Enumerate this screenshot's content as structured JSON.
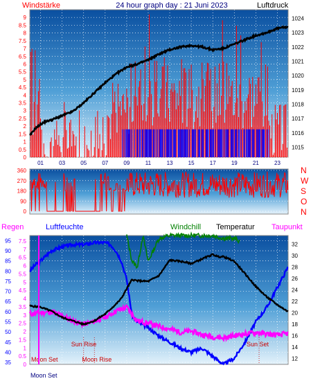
{
  "chart_data": [
    {
      "type": "line",
      "title": "24 hour graph day : 21 Juni 2023",
      "left_label": "Windstärke",
      "right_label": "Luftdruck",
      "y_left_ticks": [
        "9",
        "8.5",
        "8",
        "7.5",
        "7",
        "6.5",
        "6",
        "5.5",
        "5",
        "4.5",
        "4",
        "3.5",
        "3",
        "2.5",
        "2",
        "1.5",
        "1",
        "0.5",
        "0"
      ],
      "y_right_ticks": [
        "1024",
        "1023",
        "1022",
        "1021",
        "1020",
        "1019",
        "1018",
        "1017",
        "1016",
        "1015"
      ],
      "x_ticks": [
        "01",
        "03",
        "05",
        "07",
        "09",
        "11",
        "13",
        "15",
        "17",
        "19",
        "21",
        "23"
      ],
      "ylim_left": [
        0,
        9.5
      ],
      "ylim_right": [
        1014.3,
        1024.6
      ],
      "pressure": {
        "color": "#000000",
        "x": [
          0.0,
          0.5,
          1.0,
          1.5,
          2.0,
          3.0,
          4.0,
          5.0,
          6.0,
          7.0,
          8.0,
          9.0,
          10.0,
          11.0,
          12.0,
          13.0,
          14.0,
          15.0,
          16.0,
          17.0,
          18.0,
          19.0,
          20.0,
          21.0,
          22.0,
          23.0,
          24.0
        ],
        "values": [
          1015.8,
          1016.3,
          1016.6,
          1016.8,
          1016.9,
          1017.2,
          1017.5,
          1018.1,
          1018.8,
          1019.5,
          1020.1,
          1020.6,
          1020.8,
          1021.1,
          1021.5,
          1021.8,
          1022.0,
          1022.1,
          1022.0,
          1021.8,
          1021.9,
          1022.2,
          1022.5,
          1022.8,
          1023.0,
          1023.3,
          1023.4
        ]
      },
      "wind_gust_color": "#ff0000",
      "wind_avg_color": "#0000ff"
    },
    {
      "type": "line",
      "title": "",
      "y_left_ticks": [
        "360",
        "270",
        "180",
        "90",
        "0"
      ],
      "y_right_letters": [
        "N",
        "W",
        "S",
        "O",
        "N"
      ],
      "ylim": [
        0,
        360
      ],
      "color": "#ff0000",
      "x_ranges_blank": [
        [
          1.6,
          3.0
        ],
        [
          4.2,
          6.0
        ]
      ]
    },
    {
      "type": "line",
      "title": "",
      "legend": [
        "Regen",
        "Luftfeuchte",
        "Windchill",
        "Temperatur",
        "Taupunkt"
      ],
      "legend_colors": [
        "#ff00ff",
        "#0000ff",
        "#008000",
        "#000000",
        "#ff00ff"
      ],
      "y_rain_ticks": [
        "7.5",
        "7",
        "6.5",
        "6",
        "5.5",
        "5",
        "4.5",
        "4",
        "3.5",
        "3",
        "2.5",
        "2",
        "1.5",
        "1",
        "0.5",
        "0"
      ],
      "y_humidity_ticks": [
        "95",
        "90",
        "85",
        "80",
        "75",
        "70",
        "65",
        "60",
        "55",
        "50",
        "45",
        "40",
        "35"
      ],
      "y_temp_ticks": [
        "32",
        "30",
        "28",
        "26",
        "24",
        "22",
        "20",
        "18",
        "16",
        "14",
        "12"
      ],
      "ylim_humidity": [
        34,
        97.5
      ],
      "ylim_temp": [
        11,
        33.5
      ],
      "annotations": [
        {
          "text": "Moon Set",
          "x": 0.0
        },
        {
          "text": "Sun Rise",
          "x": 5.0
        },
        {
          "text": "Moon Rise",
          "x": 6.0
        },
        {
          "text": "Sun Set",
          "x": 21.3
        }
      ],
      "x_bottom_label": "Moon Set",
      "humidity": {
        "color": "#0000ff",
        "x": [
          0,
          0.5,
          1,
          2,
          3,
          4,
          5,
          6,
          7,
          7.5,
          8,
          8.5,
          9,
          9.5,
          10,
          11,
          12,
          13,
          14,
          15,
          16,
          17,
          18,
          19,
          20,
          21,
          22,
          23,
          24
        ],
        "values": [
          80,
          83,
          85,
          90,
          92,
          93,
          93,
          94,
          94,
          93,
          90,
          85,
          76,
          58,
          55,
          52,
          48,
          45,
          42,
          40,
          42,
          38,
          34,
          37,
          45,
          55,
          62,
          72,
          82
        ]
      },
      "temperature": {
        "color": "#000000",
        "x": [
          0,
          1,
          2,
          3,
          4,
          5,
          6,
          7,
          8,
          8.5,
          9,
          9.5,
          10,
          11,
          12,
          13,
          14,
          15,
          16,
          17,
          17.5,
          18,
          19,
          20,
          21,
          22,
          23,
          24
        ],
        "values": [
          21.2,
          21.0,
          20.3,
          19.2,
          18.6,
          18.0,
          18.6,
          19.8,
          21.5,
          22.5,
          24.2,
          25.8,
          25.6,
          25.5,
          26.5,
          29.2,
          29.0,
          28.6,
          29.4,
          30.2,
          29.8,
          29.8,
          29.0,
          26.8,
          24.6,
          22.8,
          21.4,
          20.2
        ]
      },
      "windchill": {
        "color": "#008000",
        "x": [
          9.0,
          9.5,
          10.0,
          10.5,
          11.0,
          12.0,
          13.0,
          14.0,
          15.0,
          16.0,
          17.0,
          18.0,
          19.0,
          19.5
        ],
        "values": [
          33.5,
          29.0,
          28.0,
          33.5,
          29.0,
          33.0,
          33.5,
          33.5,
          33.5,
          33.5,
          33.5,
          33.0,
          33.0,
          32.5
        ]
      },
      "dewpoint": {
        "color": "#ff00ff",
        "x": [
          0,
          1,
          2,
          3,
          4,
          5,
          6,
          7,
          8,
          9,
          10,
          11,
          12,
          13,
          14,
          15,
          16,
          17,
          18,
          19,
          20,
          21,
          22,
          23,
          24
        ],
        "values": [
          19.8,
          20.0,
          20.2,
          19.5,
          18.6,
          18.0,
          18.5,
          19.2,
          20.3,
          21.0,
          18.6,
          18.2,
          17.6,
          17.2,
          16.6,
          16.8,
          16.2,
          15.8,
          15.6,
          16.0,
          16.3,
          16.6,
          16.3,
          16.1,
          16.4
        ]
      }
    }
  ]
}
